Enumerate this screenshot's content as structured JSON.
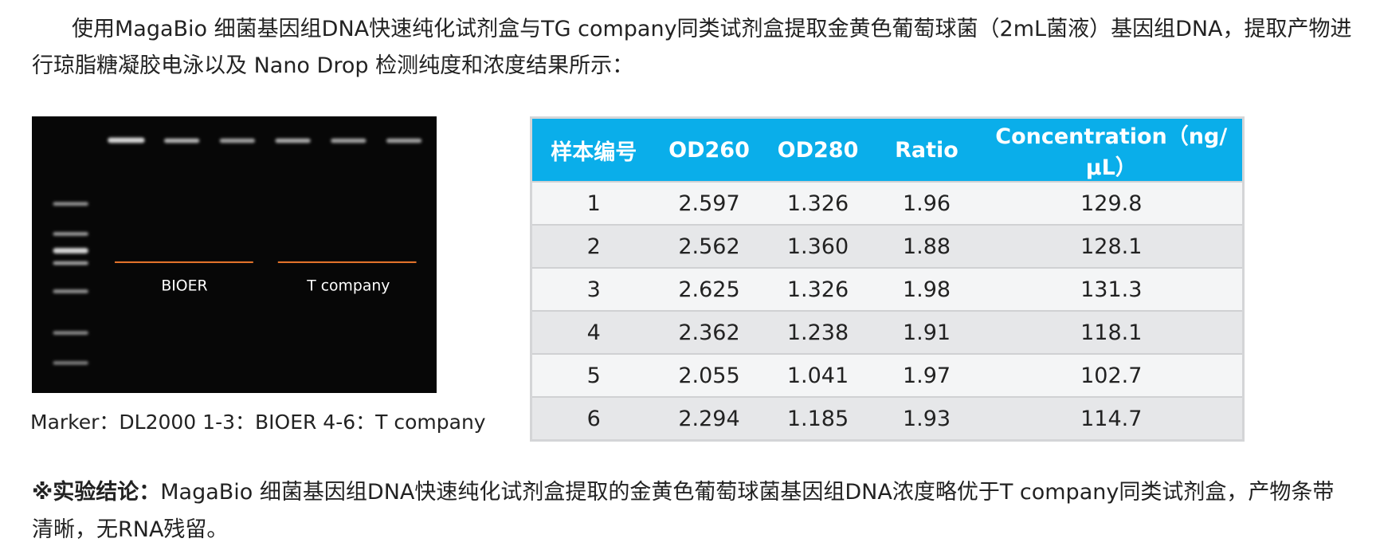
{
  "intro": "使用MagaBio 细菌基因组DNA快速纯化试剂盒与TG company同类试剂盒提取金黄色葡萄球菌（2mL菌液）基因组DNA，提取产物进行琼脂糖凝胶电泳以及 Nano Drop 检测纯度和浓度结果所示：",
  "gel": {
    "labels": [
      "BIOER",
      "T company"
    ],
    "caption": "Marker：DL2000  1-3：BIOER  4-6：T company"
  },
  "table": {
    "header": [
      "样本编号",
      "OD260",
      "OD280",
      "Ratio",
      "Concentration（ng/μL）"
    ],
    "rows": [
      [
        "1",
        "2.597",
        "1.326",
        "1.96",
        "129.8"
      ],
      [
        "2",
        "2.562",
        "1.360",
        "1.88",
        "128.1"
      ],
      [
        "3",
        "2.625",
        "1.326",
        "1.98",
        "131.3"
      ],
      [
        "4",
        "2.362",
        "1.238",
        "1.91",
        "118.1"
      ],
      [
        "5",
        "2.055",
        "1.041",
        "1.97",
        "102.7"
      ],
      [
        "6",
        "2.294",
        "1.185",
        "1.93",
        "114.7"
      ]
    ]
  },
  "conclusion": {
    "label": "※实验结论：",
    "text": "MagaBio 细菌基因组DNA快速纯化试剂盒提取的金黄色葡萄球菌基因组DNA浓度略优于T company同类试剂盒，产物条带清晰，无RNA残留。"
  }
}
